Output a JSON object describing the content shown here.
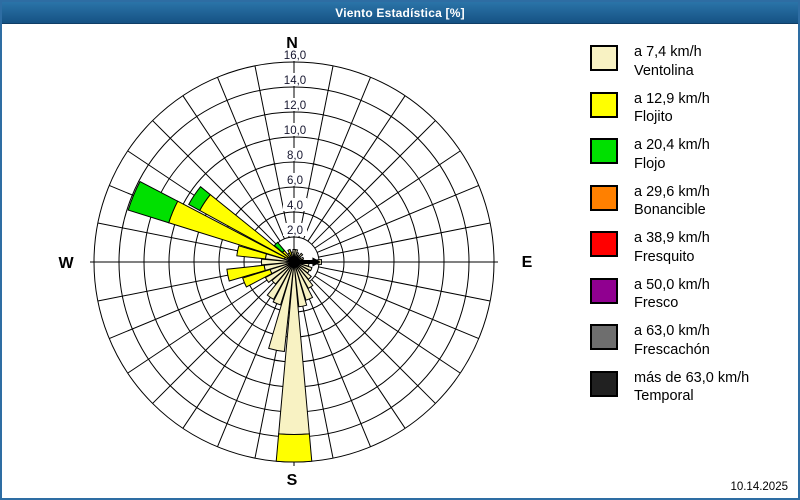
{
  "window": {
    "title": "Viento Estadística [%]",
    "date": "10.14.2025",
    "titlebar_color": "#1E6296",
    "border_color": "#2E6DA3"
  },
  "legend": {
    "items": [
      {
        "color": "#F8F2C3",
        "speed": "a 7,4 km/h",
        "name": "Ventolina"
      },
      {
        "color": "#FFFF00",
        "speed": "a 12,9 km/h",
        "name": "Flojito"
      },
      {
        "color": "#00E000",
        "speed": "a 20,4 km/h",
        "name": "Flojo"
      },
      {
        "color": "#FF8000",
        "speed": "a 29,6 km/h",
        "name": "Bonancible"
      },
      {
        "color": "#FF0000",
        "speed": "a 38,9 km/h",
        "name": "Fresquito"
      },
      {
        "color": "#900090",
        "speed": "a 50,0 km/h",
        "name": "Fresco"
      },
      {
        "color": "#6E6E6E",
        "speed": "a 63,0 km/h",
        "name": "Frescachón"
      },
      {
        "color": "#212121",
        "speed": "más de 63,0 km/h",
        "name": "Temporal"
      }
    ]
  },
  "chart_data": {
    "type": "windrose",
    "title": "Viento Estadística [%]",
    "units": "%",
    "sectors": 32,
    "sector_step_deg": 11.25,
    "petal_half_width_deg": 5.1,
    "ring_step": 2.0,
    "ring_max": 16.0,
    "ring_labels": [
      "2,0",
      "4,0",
      "6,0",
      "8,0",
      "10,0",
      "12,0",
      "14,0",
      "16,0"
    ],
    "compass": {
      "n": "N",
      "e": "E",
      "s": "S",
      "w": "W"
    },
    "grid_color": "#000000",
    "mean_direction_arrow_deg": 90,
    "speed_bins": [
      {
        "name": "Ventolina",
        "max_kmh": 7.4,
        "color": "#F8F2C3"
      },
      {
        "name": "Flojito",
        "max_kmh": 12.9,
        "color": "#FFFF00"
      },
      {
        "name": "Flojo",
        "max_kmh": 20.4,
        "color": "#00E000"
      },
      {
        "name": "Bonancible",
        "max_kmh": 29.6,
        "color": "#FF8000"
      },
      {
        "name": "Fresquito",
        "max_kmh": 38.9,
        "color": "#FF0000"
      },
      {
        "name": "Fresco",
        "max_kmh": 50.0,
        "color": "#900090"
      },
      {
        "name": "Frescachón",
        "max_kmh": 63.0,
        "color": "#6E6E6E"
      },
      {
        "name": "Temporal",
        "max_kmh": null,
        "color": "#212121"
      }
    ],
    "petals": [
      {
        "dir": 0.0,
        "stack": [
          [
            0,
            1.0
          ]
        ]
      },
      {
        "dir": 11.25,
        "stack": [
          [
            0,
            1.0
          ]
        ]
      },
      {
        "dir": 22.5,
        "stack": [
          [
            0,
            0.8
          ]
        ]
      },
      {
        "dir": 33.75,
        "stack": [
          [
            0,
            0.6
          ]
        ]
      },
      {
        "dir": 45.0,
        "stack": [
          [
            0,
            0.9
          ]
        ]
      },
      {
        "dir": 56.25,
        "stack": [
          [
            0,
            0.6
          ]
        ]
      },
      {
        "dir": 67.5,
        "stack": [
          [
            0,
            0.8
          ]
        ]
      },
      {
        "dir": 78.75,
        "stack": [
          [
            0,
            0.7
          ]
        ]
      },
      {
        "dir": 90.0,
        "stack": [
          [
            0,
            2.2
          ]
        ]
      },
      {
        "dir": 101.25,
        "stack": [
          [
            0,
            1.2
          ]
        ]
      },
      {
        "dir": 112.5,
        "stack": [
          [
            0,
            1.5
          ]
        ]
      },
      {
        "dir": 123.75,
        "stack": [
          [
            0,
            1.4
          ]
        ]
      },
      {
        "dir": 135.0,
        "stack": [
          [
            0,
            1.8
          ]
        ]
      },
      {
        "dir": 146.25,
        "stack": [
          [
            0,
            2.4
          ]
        ]
      },
      {
        "dir": 157.5,
        "stack": [
          [
            0,
            3.2
          ]
        ]
      },
      {
        "dir": 168.75,
        "stack": [
          [
            0,
            3.6
          ]
        ]
      },
      {
        "dir": 180.0,
        "stack": [
          [
            0,
            13.8
          ],
          [
            1,
            16.0
          ]
        ]
      },
      {
        "dir": 191.25,
        "stack": [
          [
            0,
            7.2
          ]
        ]
      },
      {
        "dir": 202.5,
        "stack": [
          [
            0,
            3.6
          ]
        ]
      },
      {
        "dir": 213.75,
        "stack": [
          [
            0,
            3.4
          ]
        ]
      },
      {
        "dir": 225.0,
        "stack": [
          [
            0,
            2.3
          ]
        ]
      },
      {
        "dir": 236.25,
        "stack": [
          [
            0,
            2.6
          ]
        ]
      },
      {
        "dir": 247.5,
        "stack": [
          [
            0,
            2.0
          ],
          [
            1,
            4.3
          ]
        ]
      },
      {
        "dir": 258.75,
        "stack": [
          [
            0,
            2.4
          ],
          [
            1,
            5.4
          ]
        ]
      },
      {
        "dir": 270.0,
        "stack": [
          [
            0,
            2.6
          ]
        ]
      },
      {
        "dir": 281.25,
        "stack": [
          [
            0,
            2.3
          ],
          [
            1,
            4.6
          ]
        ]
      },
      {
        "dir": 292.5,
        "stack": [
          [
            0,
            0.8
          ],
          [
            1,
            10.5
          ],
          [
            2,
            13.9
          ]
        ]
      },
      {
        "dir": 303.75,
        "stack": [
          [
            0,
            0.6
          ],
          [
            1,
            8.6
          ],
          [
            2,
            9.6
          ]
        ]
      },
      {
        "dir": 315.0,
        "stack": [
          [
            0,
            0.5
          ],
          [
            1,
            1.2
          ],
          [
            2,
            2.05
          ]
        ]
      },
      {
        "dir": 326.25,
        "stack": [
          [
            0,
            0.8
          ]
        ]
      },
      {
        "dir": 337.5,
        "stack": [
          [
            0,
            0.4
          ],
          [
            1,
            1.05
          ]
        ]
      },
      {
        "dir": 348.75,
        "stack": [
          [
            0,
            0.8
          ]
        ]
      }
    ]
  }
}
